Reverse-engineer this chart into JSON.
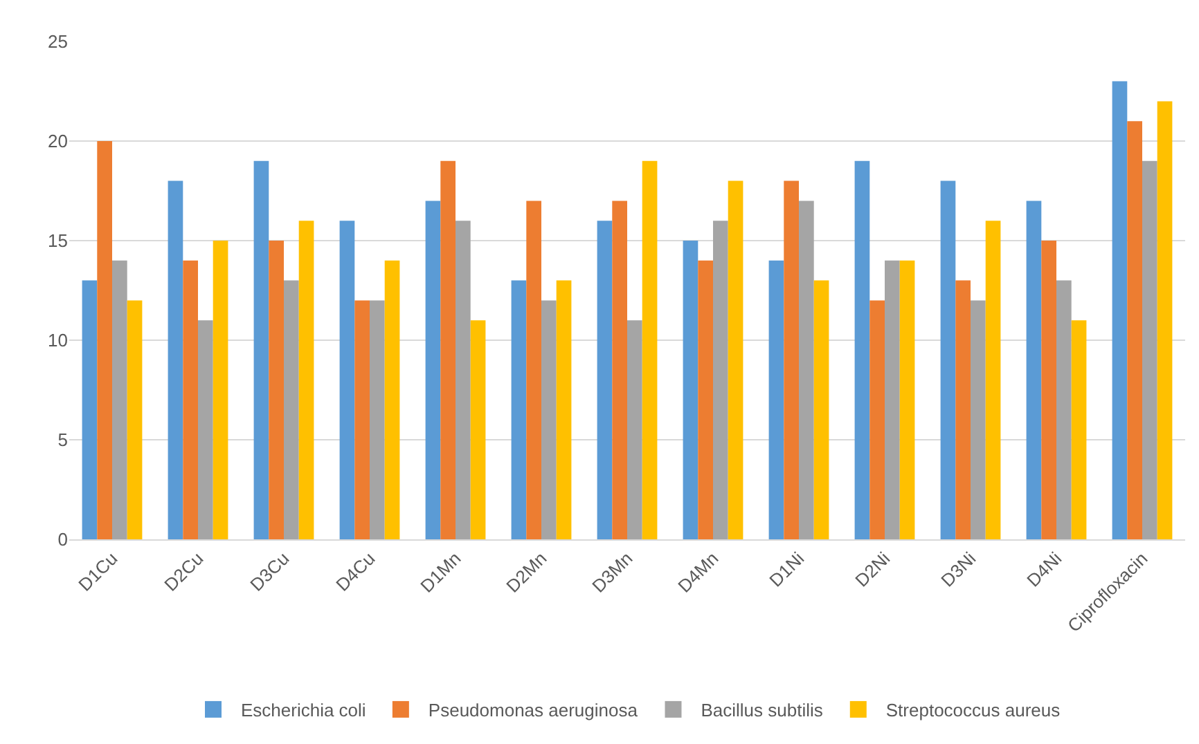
{
  "chart_data": {
    "type": "bar",
    "categories": [
      "D1Cu",
      "D2Cu",
      "D3Cu",
      "D4Cu",
      "D1Mn",
      "D2Mn",
      "D3Mn",
      "D4Mn",
      "D1Ni",
      "D2Ni",
      "D3Ni",
      "D4Ni",
      "Ciprofloxacin"
    ],
    "series": [
      {
        "name": "Escherichia coli",
        "color": "#5b9bd5",
        "values": [
          13,
          18,
          19,
          16,
          17,
          13,
          16,
          15,
          14,
          19,
          18,
          17,
          23
        ]
      },
      {
        "name": "Pseudomonas aeruginosa",
        "color": "#ed7d31",
        "values": [
          20,
          14,
          15,
          12,
          19,
          17,
          17,
          14,
          18,
          12,
          13,
          15,
          21
        ]
      },
      {
        "name": "Bacillus subtilis",
        "color": "#a5a5a5",
        "values": [
          14,
          11,
          13,
          12,
          16,
          12,
          11,
          16,
          17,
          14,
          12,
          13,
          19
        ]
      },
      {
        "name": "Streptococcus aureus",
        "color": "#ffc000",
        "values": [
          12,
          15,
          16,
          14,
          11,
          13,
          19,
          18,
          13,
          14,
          16,
          11,
          22
        ]
      }
    ],
    "ylim": [
      0,
      25
    ],
    "yticks": [
      0,
      5,
      10,
      15,
      20,
      25
    ],
    "grid": "y",
    "legend": "bottom"
  }
}
